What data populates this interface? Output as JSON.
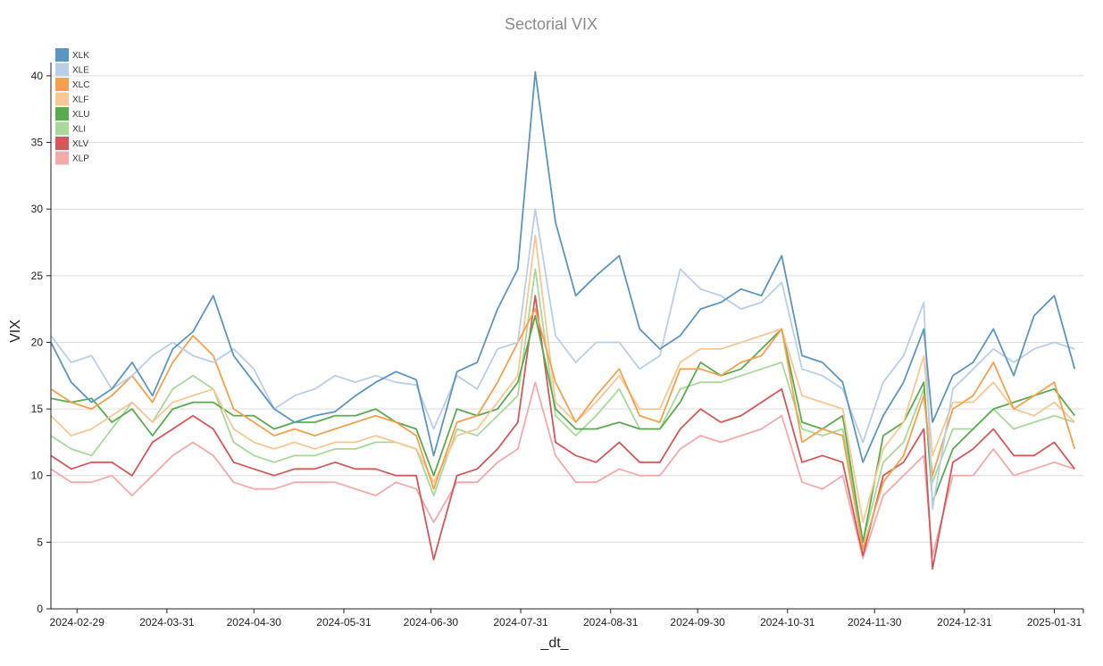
{
  "chart_data": {
    "type": "line",
    "title": "Sectorial VIX",
    "xlabel": "_dt_",
    "ylabel": "VIX",
    "ylim": [
      0,
      41
    ],
    "xlim": [
      "2024-02-20",
      "2025-02-10"
    ],
    "yticks": [
      0,
      5,
      10,
      15,
      20,
      25,
      30,
      35,
      40
    ],
    "xticks": [
      "2024-02-29",
      "2024-03-31",
      "2024-04-30",
      "2024-05-31",
      "2024-06-30",
      "2024-07-31",
      "2024-08-31",
      "2024-09-30",
      "2024-10-31",
      "2024-11-30",
      "2024-12-31",
      "2025-01-31"
    ],
    "grid": true,
    "legend_position": "top-left",
    "x": [
      "2024-02-20",
      "2024-02-27",
      "2024-03-05",
      "2024-03-12",
      "2024-03-19",
      "2024-03-26",
      "2024-04-02",
      "2024-04-09",
      "2024-04-16",
      "2024-04-23",
      "2024-04-30",
      "2024-05-07",
      "2024-05-14",
      "2024-05-21",
      "2024-05-28",
      "2024-06-04",
      "2024-06-11",
      "2024-06-18",
      "2024-06-25",
      "2024-07-01",
      "2024-07-09",
      "2024-07-16",
      "2024-07-23",
      "2024-07-30",
      "2024-08-05",
      "2024-08-12",
      "2024-08-19",
      "2024-08-26",
      "2024-09-03",
      "2024-09-10",
      "2024-09-17",
      "2024-09-24",
      "2024-10-01",
      "2024-10-08",
      "2024-10-15",
      "2024-10-22",
      "2024-10-29",
      "2024-11-05",
      "2024-11-12",
      "2024-11-19",
      "2024-11-26",
      "2024-12-03",
      "2024-12-10",
      "2024-12-17",
      "2024-12-20",
      "2024-12-27",
      "2025-01-03",
      "2025-01-10",
      "2025-01-17",
      "2025-01-24",
      "2025-01-31",
      "2025-02-07"
    ],
    "series": [
      {
        "name": "XLK",
        "color": "#5b96c2",
        "values": [
          20.0,
          17.0,
          15.5,
          16.5,
          18.5,
          16.0,
          19.5,
          20.8,
          23.5,
          19.0,
          17.0,
          15.0,
          14.0,
          14.5,
          14.8,
          16.0,
          17.0,
          17.8,
          17.2,
          11.5,
          17.8,
          18.5,
          22.5,
          25.5,
          40.3,
          29.0,
          23.5,
          25.0,
          26.5,
          21.0,
          19.5,
          20.5,
          22.5,
          23.0,
          24.0,
          23.5,
          26.5,
          19.0,
          18.5,
          17.0,
          11.0,
          14.5,
          17.0,
          21.0,
          14.0,
          17.5,
          18.5,
          21.0,
          17.5,
          22.0,
          23.5,
          18.0
        ]
      },
      {
        "name": "XLE",
        "color": "#b9cfe8",
        "values": [
          20.5,
          18.5,
          19.0,
          16.5,
          17.5,
          19.0,
          20.0,
          19.0,
          18.5,
          19.5,
          18.0,
          15.0,
          16.0,
          16.5,
          17.5,
          17.0,
          17.5,
          17.0,
          16.8,
          13.5,
          17.5,
          16.5,
          19.5,
          20.0,
          30.0,
          20.5,
          18.5,
          20.0,
          20.0,
          18.0,
          19.0,
          25.5,
          24.0,
          23.5,
          22.5,
          23.0,
          24.5,
          18.0,
          17.5,
          16.5,
          12.5,
          17.0,
          19.0,
          23.0,
          7.5,
          16.5,
          18.0,
          19.5,
          18.5,
          19.5,
          20.0,
          19.5
        ]
      },
      {
        "name": "XLC",
        "color": "#f5a04d",
        "values": [
          16.5,
          15.5,
          15.0,
          16.0,
          17.5,
          15.5,
          18.5,
          20.5,
          19.0,
          15.0,
          14.0,
          13.0,
          13.5,
          13.0,
          13.5,
          14.0,
          14.5,
          14.0,
          13.0,
          9.0,
          14.0,
          14.5,
          17.0,
          20.0,
          22.5,
          17.0,
          14.0,
          16.0,
          18.0,
          14.5,
          14.0,
          18.0,
          18.0,
          17.5,
          18.5,
          19.0,
          21.0,
          12.5,
          13.5,
          13.0,
          4.5,
          9.5,
          11.5,
          16.0,
          10.0,
          15.0,
          16.0,
          18.5,
          15.0,
          16.0,
          17.0,
          12.0
        ]
      },
      {
        "name": "XLF",
        "color": "#f8c793",
        "values": [
          14.5,
          13.0,
          13.5,
          14.5,
          15.5,
          14.0,
          15.5,
          16.0,
          16.5,
          13.5,
          12.5,
          12.0,
          12.5,
          12.0,
          12.5,
          12.5,
          13.0,
          12.5,
          12.0,
          9.5,
          13.0,
          13.5,
          15.5,
          17.5,
          28.0,
          15.5,
          14.0,
          15.5,
          17.5,
          15.0,
          15.0,
          18.5,
          19.5,
          19.5,
          20.0,
          20.5,
          21.0,
          16.0,
          15.5,
          15.0,
          6.5,
          12.0,
          14.0,
          19.0,
          11.5,
          15.5,
          15.5,
          17.0,
          15.0,
          14.5,
          15.5,
          14.0
        ]
      },
      {
        "name": "XLU",
        "color": "#5aab4f",
        "values": [
          15.8,
          15.5,
          15.8,
          14.0,
          15.0,
          13.0,
          15.0,
          15.5,
          15.5,
          14.5,
          14.5,
          13.5,
          14.0,
          14.0,
          14.5,
          14.5,
          15.0,
          14.0,
          13.5,
          10.0,
          15.0,
          14.5,
          15.0,
          17.0,
          22.0,
          15.0,
          13.5,
          13.5,
          14.0,
          13.5,
          13.5,
          15.5,
          18.5,
          17.5,
          18.0,
          19.5,
          21.0,
          14.0,
          13.5,
          14.5,
          5.0,
          13.0,
          14.0,
          17.0,
          8.0,
          12.0,
          13.5,
          15.0,
          15.5,
          16.0,
          16.5,
          14.5
        ]
      },
      {
        "name": "XLI",
        "color": "#a8d99a",
        "values": [
          13.0,
          12.0,
          11.5,
          13.5,
          15.5,
          14.0,
          16.5,
          17.5,
          16.5,
          12.5,
          11.5,
          11.0,
          11.5,
          11.5,
          12.0,
          12.0,
          12.5,
          12.5,
          12.0,
          8.5,
          13.5,
          13.0,
          14.5,
          16.0,
          25.5,
          14.5,
          13.0,
          14.5,
          16.5,
          13.5,
          13.5,
          16.5,
          17.0,
          17.0,
          17.5,
          18.0,
          18.5,
          13.5,
          13.0,
          13.5,
          5.0,
          11.0,
          12.5,
          16.5,
          9.5,
          13.5,
          13.5,
          15.0,
          13.5,
          14.0,
          14.5,
          14.0
        ]
      },
      {
        "name": "XLV",
        "color": "#d6575a",
        "values": [
          11.5,
          10.5,
          11.0,
          11.0,
          10.0,
          12.5,
          13.5,
          14.5,
          13.5,
          11.0,
          10.5,
          10.0,
          10.5,
          10.5,
          11.0,
          10.5,
          10.5,
          10.0,
          10.0,
          3.7,
          10.0,
          10.5,
          12.0,
          14.0,
          23.5,
          12.5,
          11.5,
          11.0,
          12.5,
          11.0,
          11.0,
          13.5,
          15.0,
          14.0,
          14.5,
          15.5,
          16.5,
          11.0,
          11.5,
          11.0,
          4.0,
          10.0,
          11.0,
          13.5,
          3.0,
          11.0,
          12.0,
          13.5,
          11.5,
          11.5,
          12.5,
          10.5
        ]
      },
      {
        "name": "XLP",
        "color": "#f4a9aa",
        "values": [
          10.5,
          9.5,
          9.5,
          10.0,
          8.5,
          10.0,
          11.5,
          12.5,
          11.5,
          9.5,
          9.0,
          9.0,
          9.5,
          9.5,
          9.5,
          9.0,
          8.5,
          9.5,
          9.0,
          6.5,
          9.5,
          9.5,
          11.0,
          12.0,
          17.0,
          11.5,
          9.5,
          9.5,
          10.5,
          10.0,
          10.0,
          12.0,
          13.0,
          12.5,
          13.0,
          13.5,
          14.5,
          9.5,
          9.0,
          10.0,
          3.8,
          8.5,
          10.0,
          11.5,
          4.0,
          10.0,
          10.0,
          12.0,
          10.0,
          10.5,
          11.0,
          10.5
        ]
      }
    ]
  }
}
